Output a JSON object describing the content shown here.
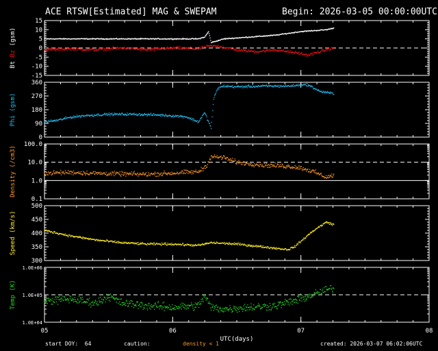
{
  "header": {
    "title": "ACE RTSW[Estimated] MAG & SWEPAM",
    "begin": "Begin: 2026-03-05 00:00:00UTC"
  },
  "footer": {
    "start_doy": "start DOY:  64",
    "caution": "caution:",
    "density_note": "density < 1",
    "created": "created: 2026-03-07 06:02:06UTC"
  },
  "colors": {
    "bt": "#ffffff",
    "bz": "#ee1111",
    "phi": "#22bbee",
    "density": "#ff9922",
    "speed": "#ffee22",
    "temp": "#22dd22",
    "frame": "#ffffff",
    "background": "#000000"
  },
  "chart_data": [
    {
      "type": "scatter",
      "panel": "mag",
      "ylabel_parts": [
        "Bt",
        "Bz",
        "(gsm)"
      ],
      "ylim": [
        -15,
        15
      ],
      "yticks": [
        "15",
        "10",
        "5",
        "0",
        "-5",
        "-10",
        "-15"
      ],
      "ytick_values": [
        15,
        10,
        5,
        0,
        -5,
        -10,
        -15
      ],
      "reference_lines": [
        0
      ],
      "series": [
        {
          "name": "Bt",
          "color": "#ffffff",
          "jitter": 0.4,
          "x": [
            0,
            0.3,
            0.6,
            0.9,
            1.2,
            1.25,
            1.28,
            1.3,
            1.35,
            1.4,
            1.6,
            1.8,
            2.0,
            2.2,
            2.26
          ],
          "y": [
            5,
            5,
            5,
            5,
            5,
            6,
            9,
            3,
            4,
            5,
            6,
            7,
            9,
            10,
            11
          ]
        },
        {
          "name": "Bz",
          "color": "#ee1111",
          "jitter": 1.1,
          "x": [
            0,
            0.2,
            0.4,
            0.6,
            0.8,
            1.0,
            1.2,
            1.28,
            1.35,
            1.5,
            1.65,
            1.8,
            1.9,
            2.0,
            2.05,
            2.1,
            2.15,
            2.2,
            2.26
          ],
          "y": [
            -1,
            -0.5,
            -1,
            0,
            -1,
            0,
            -0.5,
            1,
            1,
            -1,
            -2,
            -1,
            -2,
            -3,
            -4,
            -3,
            -2,
            -1,
            0
          ]
        }
      ]
    },
    {
      "type": "scatter",
      "panel": "phi",
      "ylabel_parts": [
        "Phi (gsm)"
      ],
      "ylim": [
        0,
        360
      ],
      "yticks": [
        "360",
        "270",
        "180",
        "90",
        "0"
      ],
      "ytick_values": [
        360,
        270,
        180,
        90,
        0
      ],
      "series": [
        {
          "name": "Phi",
          "color": "#22bbee",
          "jitter": 12,
          "x": [
            0,
            0.1,
            0.2,
            0.3,
            0.5,
            0.7,
            0.9,
            1.0,
            1.1,
            1.2,
            1.25,
            1.3,
            1.32,
            1.35,
            1.4,
            1.5,
            1.7,
            1.9,
            2.05,
            2.15,
            2.26
          ],
          "y": [
            100,
            110,
            130,
            140,
            150,
            150,
            145,
            140,
            135,
            100,
            160,
            60,
            250,
            320,
            335,
            330,
            335,
            335,
            345,
            300,
            285
          ]
        }
      ]
    },
    {
      "type": "scatter",
      "panel": "density",
      "ylabel_parts": [
        "Density (/cm3)"
      ],
      "scale": "log",
      "ylim": [
        0.1,
        100
      ],
      "yticks": [
        "100.0",
        "10.0",
        "1.0",
        "0.1"
      ],
      "ytick_values": [
        100,
        10,
        1,
        0.1
      ],
      "reference_lines": [
        10,
        1
      ],
      "series": [
        {
          "name": "Density",
          "color": "#ff9922",
          "jitter": 0.18,
          "x": [
            0,
            0.2,
            0.4,
            0.6,
            0.8,
            1.0,
            1.1,
            1.2,
            1.26,
            1.3,
            1.4,
            1.5,
            1.7,
            1.9,
            2.0,
            2.1,
            2.2,
            2.26
          ],
          "y": [
            2.5,
            2.8,
            2.5,
            2.3,
            2.2,
            2.5,
            2.8,
            3,
            6,
            20,
            18,
            10,
            7,
            6,
            5,
            3,
            1.5,
            2
          ]
        }
      ]
    },
    {
      "type": "scatter",
      "panel": "speed",
      "ylabel_parts": [
        "Speed (km/s)"
      ],
      "ylim": [
        300,
        500
      ],
      "yticks": [
        "500",
        "450",
        "400",
        "350",
        "300"
      ],
      "ytick_values": [
        500,
        450,
        400,
        350,
        300
      ],
      "series": [
        {
          "name": "Speed",
          "color": "#ffee22",
          "jitter": 6,
          "x": [
            0,
            0.2,
            0.4,
            0.6,
            0.8,
            1.0,
            1.2,
            1.3,
            1.5,
            1.7,
            1.9,
            1.95,
            2.0,
            2.1,
            2.2,
            2.26
          ],
          "y": [
            410,
            390,
            375,
            365,
            360,
            360,
            355,
            365,
            360,
            350,
            340,
            350,
            370,
            410,
            440,
            430
          ]
        }
      ]
    },
    {
      "type": "scatter",
      "panel": "temp",
      "ylabel_parts": [
        "Temp (K)"
      ],
      "scale": "log",
      "ylim": [
        10000,
        1000000
      ],
      "yticks": [
        "1.0E+06",
        "1.0E+05",
        "1.0E+04"
      ],
      "ytick_values": [
        1000000,
        100000,
        10000
      ],
      "reference_lines": [
        100000
      ],
      "series": [
        {
          "name": "Temp",
          "color": "#22dd22",
          "jitter": 0.22,
          "x": [
            0,
            0.2,
            0.4,
            0.5,
            0.6,
            0.8,
            1.0,
            1.2,
            1.25,
            1.3,
            1.4,
            1.6,
            1.8,
            2.0,
            2.2,
            2.26
          ],
          "y": [
            60000,
            70000,
            50000,
            90000,
            50000,
            40000,
            35000,
            40000,
            90000,
            35000,
            30000,
            35000,
            40000,
            70000,
            150000,
            180000
          ]
        }
      ]
    }
  ],
  "xaxis": {
    "label": "UTC(days)",
    "ticks": [
      "05",
      "06",
      "07",
      "08"
    ],
    "tick_values": [
      0,
      1,
      2,
      3
    ],
    "xlim": [
      0,
      3
    ]
  }
}
